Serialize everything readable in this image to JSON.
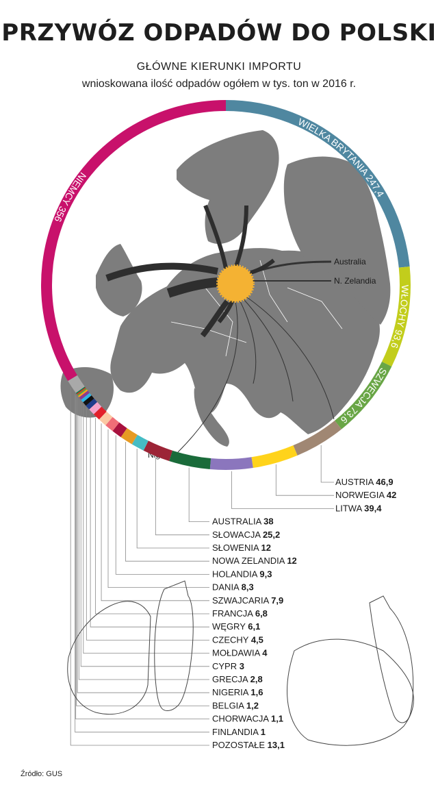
{
  "header": {
    "title": "PRZYWÓZ ODPADÓW DO POLSKI",
    "subtitle": "GŁÓWNE KIERUNKI IMPORTU",
    "note": "wnioskowana ilość odpadów ogółem w tys. ton w 2016 r."
  },
  "map_labels": {
    "australia": "Australia",
    "nzelandia": "N. Zelandia",
    "nigeria": "Nigeria"
  },
  "source": "Źródło: GUS",
  "chart_data": {
    "type": "pie",
    "title": "PRZYWÓZ ODPADÓW DO POLSKI",
    "unit": "tys. ton",
    "ring_order": [
      "NIEMCY",
      "WIELKA BRYTANIA",
      "WŁOCHY",
      "SZWECJA",
      "AUSTRIA",
      "NORWEGIA",
      "LITWA",
      "AUSTRALIA",
      "SŁOWACJA",
      "SŁOWENIA",
      "NOWA ZELANDIA",
      "HOLANDIA",
      "DANIA",
      "SZWAJCARIA",
      "FRANCJA",
      "WĘGRY",
      "CZECHY",
      "MOŁDAWIA",
      "CYPR",
      "GRECJA",
      "NIGERIA",
      "BELGIA",
      "CHORWACJA",
      "FINLANDIA",
      "POZOSTAŁE"
    ],
    "slices": [
      {
        "label": "NIEMCY",
        "value": 356,
        "display": "356",
        "color": "#c8116b"
      },
      {
        "label": "WIELKA BRYTANIA",
        "value": 247.4,
        "display": "247,4",
        "color": "#4f87a0"
      },
      {
        "label": "WŁOCHY",
        "value": 93.6,
        "display": "93,6",
        "color": "#c2cd1c"
      },
      {
        "label": "SZWECJA",
        "value": 73.6,
        "display": "73,6",
        "color": "#69a646"
      },
      {
        "label": "AUSTRIA",
        "value": 46.9,
        "display": "46,9",
        "color": "#a08773"
      },
      {
        "label": "NORWEGIA",
        "value": 42,
        "display": "42",
        "color": "#ffd31b"
      },
      {
        "label": "LITWA",
        "value": 39.4,
        "display": "39,4",
        "color": "#8b76bd"
      },
      {
        "label": "AUSTRALIA",
        "value": 38,
        "display": "38",
        "color": "#1a6b3a"
      },
      {
        "label": "SŁOWACJA",
        "value": 25.2,
        "display": "25,2",
        "color": "#9c2436"
      },
      {
        "label": "SŁOWENIA",
        "value": 12,
        "display": "12",
        "color": "#45bcc4"
      },
      {
        "label": "NOWA ZELANDIA",
        "value": 12,
        "display": "12",
        "color": "#e69a23"
      },
      {
        "label": "HOLANDIA",
        "value": 9.3,
        "display": "9,3",
        "color": "#a8113e"
      },
      {
        "label": "DANIA",
        "value": 8.3,
        "display": "8,3",
        "color": "#f06d77"
      },
      {
        "label": "SZWAJCARIA",
        "value": 7.9,
        "display": "7,9",
        "color": "#fbc8a3"
      },
      {
        "label": "FRANCJA",
        "value": 6.8,
        "display": "6,8",
        "color": "#e31f2a"
      },
      {
        "label": "WĘGRY",
        "value": 6.1,
        "display": "6,1",
        "color": "#f5a3cb"
      },
      {
        "label": "CZECHY",
        "value": 4.5,
        "display": "4,5",
        "color": "#1f3d8c"
      },
      {
        "label": "MOŁDAWIA",
        "value": 4,
        "display": "4",
        "color": "#111111"
      },
      {
        "label": "CYPR",
        "value": 3,
        "display": "3",
        "color": "#2fb5e6"
      },
      {
        "label": "GRECJA",
        "value": 2.8,
        "display": "2,8",
        "color": "#8e3a8f"
      },
      {
        "label": "NIGERIA",
        "value": 1.6,
        "display": "1,6",
        "color": "#f7a21b"
      },
      {
        "label": "BELGIA",
        "value": 1.2,
        "display": "1,2",
        "color": "#4fa847"
      },
      {
        "label": "CHORWACJA",
        "value": 1.1,
        "display": "1,1",
        "color": "#e1341e"
      },
      {
        "label": "FINLANDIA",
        "value": 1,
        "display": "1",
        "color": "#0e7b4a"
      },
      {
        "label": "POZOSTAŁE",
        "value": 13.1,
        "display": "13,1",
        "color": "#a9a9a9"
      }
    ]
  }
}
